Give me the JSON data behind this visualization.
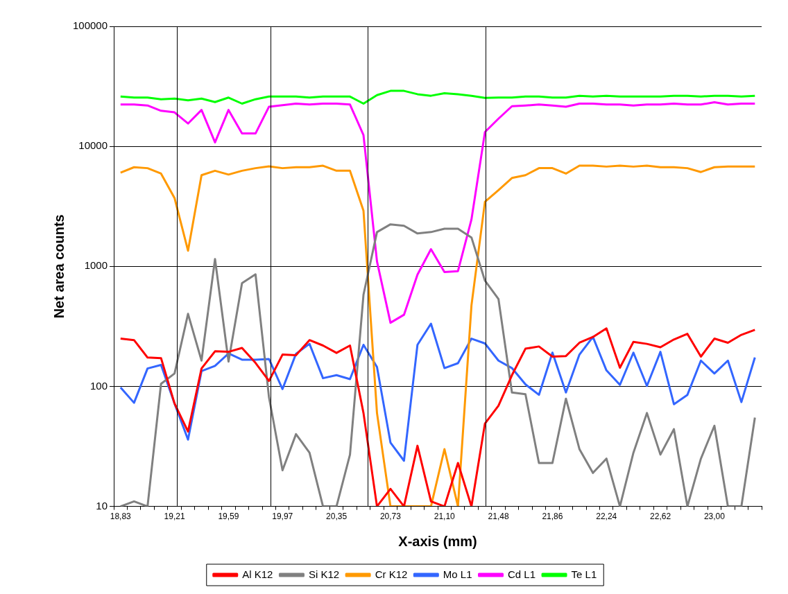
{
  "chart_data": {
    "type": "line",
    "xlabel": "X-axis (mm)",
    "ylabel": "Net area counts",
    "categories": [
      "18,83",
      null,
      null,
      null,
      "19,21",
      null,
      null,
      null,
      "19,59",
      null,
      null,
      null,
      "19,97",
      null,
      null,
      null,
      "20,35",
      null,
      null,
      null,
      "20,73",
      null,
      null,
      null,
      "21,10",
      null,
      null,
      null,
      "21,48",
      null,
      null,
      null,
      "21,86",
      null,
      null,
      null,
      "22,24",
      null,
      null,
      null,
      "22,62",
      null,
      null,
      null,
      "23,00",
      null,
      null,
      null
    ],
    "series": [
      {
        "name": "Al K12",
        "color": "#ff0000",
        "values": [
          250,
          243,
          174,
          172,
          72,
          42,
          141,
          196,
          194,
          209,
          157,
          111,
          184,
          182,
          243,
          219,
          190,
          219,
          60,
          10,
          14,
          10,
          32,
          11,
          10,
          23,
          10,
          49,
          69,
          124,
          206,
          215,
          177,
          179,
          231,
          258,
          304,
          143,
          235,
          226,
          212,
          246,
          274,
          177,
          250,
          231,
          269,
          296
        ]
      },
      {
        "name": "Si K12",
        "color": "#808080",
        "values": [
          10,
          11,
          10,
          105,
          128,
          402,
          164,
          1150,
          161,
          725,
          859,
          81,
          20,
          40,
          28,
          10,
          10,
          27,
          580,
          1930,
          2240,
          2180,
          1880,
          1930,
          2060,
          2060,
          1740,
          760,
          535,
          89,
          86,
          23,
          23,
          79,
          30,
          19,
          25,
          10,
          28,
          60,
          27,
          44,
          10,
          25,
          47,
          10,
          10,
          55
        ]
      },
      {
        "name": "Cr K12",
        "color": "#ff9900",
        "values": [
          6040,
          6700,
          6580,
          5930,
          3710,
          1350,
          5750,
          6260,
          5820,
          6260,
          6580,
          6820,
          6580,
          6700,
          6700,
          6900,
          6260,
          6260,
          2910,
          60,
          10,
          10,
          10,
          10,
          30,
          10,
          473,
          3450,
          4320,
          5450,
          5750,
          6580,
          6580,
          5930,
          6900,
          6900,
          6780,
          6900,
          6780,
          6900,
          6700,
          6700,
          6580,
          6110,
          6700,
          6780,
          6780,
          6780
        ]
      },
      {
        "name": "Mo L1",
        "color": "#3366ff",
        "values": [
          98,
          73,
          141,
          151,
          72,
          36,
          134,
          148,
          188,
          167,
          167,
          169,
          95,
          187,
          226,
          117,
          124,
          115,
          222,
          145,
          34,
          24,
          222,
          333,
          142,
          156,
          250,
          228,
          164,
          142,
          104,
          85,
          191,
          89,
          184,
          258,
          136,
          103,
          191,
          101,
          194,
          71,
          85,
          164,
          128,
          164,
          74,
          174
        ]
      },
      {
        "name": "Cd L1",
        "color": "#ff00ff",
        "values": [
          22300,
          22300,
          21900,
          19800,
          19200,
          15500,
          20100,
          10800,
          20100,
          12800,
          12800,
          21400,
          22000,
          22700,
          22300,
          22700,
          22700,
          22300,
          12400,
          1100,
          339,
          395,
          853,
          1390,
          897,
          912,
          2460,
          13150,
          17000,
          21600,
          21900,
          22300,
          21900,
          21400,
          22700,
          22700,
          22300,
          22300,
          21900,
          22300,
          22300,
          22700,
          22300,
          22300,
          23300,
          22300,
          22700,
          22700
        ]
      },
      {
        "name": "Te L1",
        "color": "#00ff00",
        "values": [
          26000,
          25500,
          25500,
          24700,
          25000,
          24200,
          25000,
          23400,
          25500,
          22700,
          24700,
          26000,
          26000,
          26000,
          25500,
          26000,
          26000,
          26000,
          22700,
          26700,
          29000,
          29000,
          27200,
          26400,
          27700,
          27200,
          26400,
          25300,
          25500,
          25500,
          26000,
          26000,
          25500,
          25500,
          26400,
          26000,
          26400,
          26000,
          26000,
          26000,
          26000,
          26400,
          26400,
          26000,
          26400,
          26400,
          26000,
          26400
        ]
      }
    ],
    "log": "y",
    "ylim": [
      10,
      100000
    ],
    "yticks": [
      10,
      100,
      1000,
      10000,
      100000
    ],
    "grid": "y",
    "legend": "bottom",
    "marker": "none",
    "line_style": "solid"
  }
}
